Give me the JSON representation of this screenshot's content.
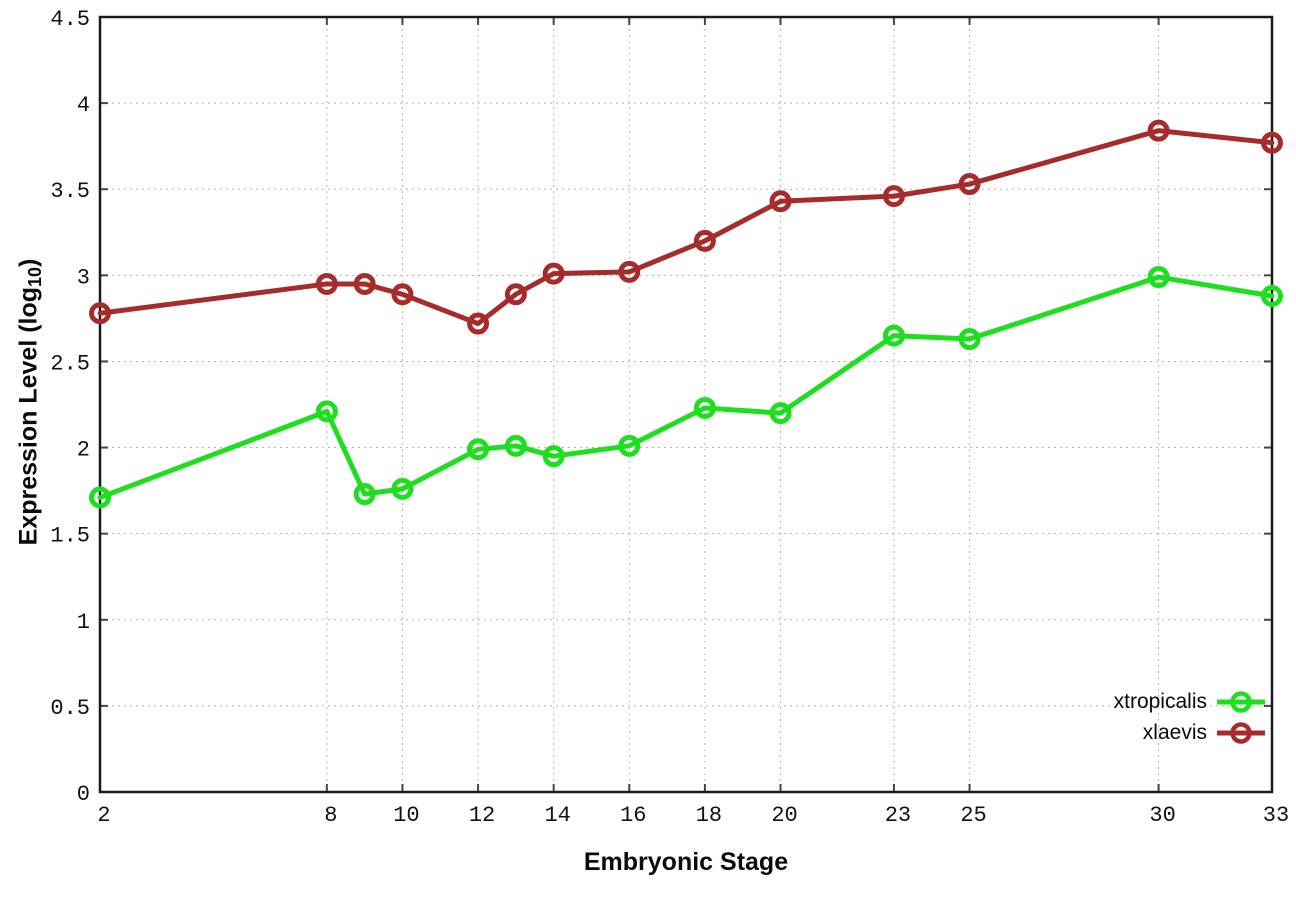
{
  "labels": {
    "xlabel": "Embryonic Stage",
    "ylabel_main": "Expression Level (log",
    "ylabel_sub": "10",
    "ylabel_close": ")"
  },
  "colors": {
    "grid": "#b4b4b4",
    "border": "#1a1a1a",
    "tick": "#444444",
    "text": "#111111",
    "background": "#ffffff",
    "series_green": "#1ddf1d",
    "series_red": "#a62c2c"
  },
  "chart_data": {
    "type": "line",
    "title": "",
    "xlabel": "Embryonic Stage",
    "ylabel": "Expression Level (log10)",
    "xlim": [
      2,
      33
    ],
    "ylim": [
      0,
      4.5
    ],
    "grid": true,
    "legend_position": "bottom-right",
    "x": [
      2,
      8,
      9,
      10,
      12,
      13,
      14,
      16,
      18,
      20,
      23,
      25,
      30,
      33
    ],
    "x_tick_labels": [
      "2",
      "8",
      "10",
      "12",
      "14",
      "16",
      "18",
      "20",
      "23",
      "25",
      "30",
      "33"
    ],
    "x_tick_values": [
      2,
      8,
      10,
      12,
      14,
      16,
      18,
      20,
      23,
      25,
      30,
      33
    ],
    "y_tick_labels": [
      "0",
      "0.5",
      "1",
      "1.5",
      "2",
      "2.5",
      "3",
      "3.5",
      "4",
      "4.5"
    ],
    "y_tick_values": [
      0,
      0.5,
      1,
      1.5,
      2,
      2.5,
      3,
      3.5,
      4,
      4.5
    ],
    "series": [
      {
        "name": "xtropicalis",
        "color": "#1ddf1d",
        "marker": "open-circle",
        "values": [
          1.71,
          2.21,
          1.73,
          1.76,
          1.99,
          2.01,
          1.95,
          2.01,
          2.23,
          2.2,
          2.65,
          2.63,
          2.99,
          2.88
        ]
      },
      {
        "name": "xlaevis",
        "color": "#a62c2c",
        "marker": "open-circle",
        "values": [
          2.78,
          2.95,
          2.95,
          2.89,
          2.72,
          2.89,
          3.01,
          3.02,
          3.2,
          3.43,
          3.46,
          3.53,
          3.84,
          3.77
        ]
      }
    ]
  }
}
